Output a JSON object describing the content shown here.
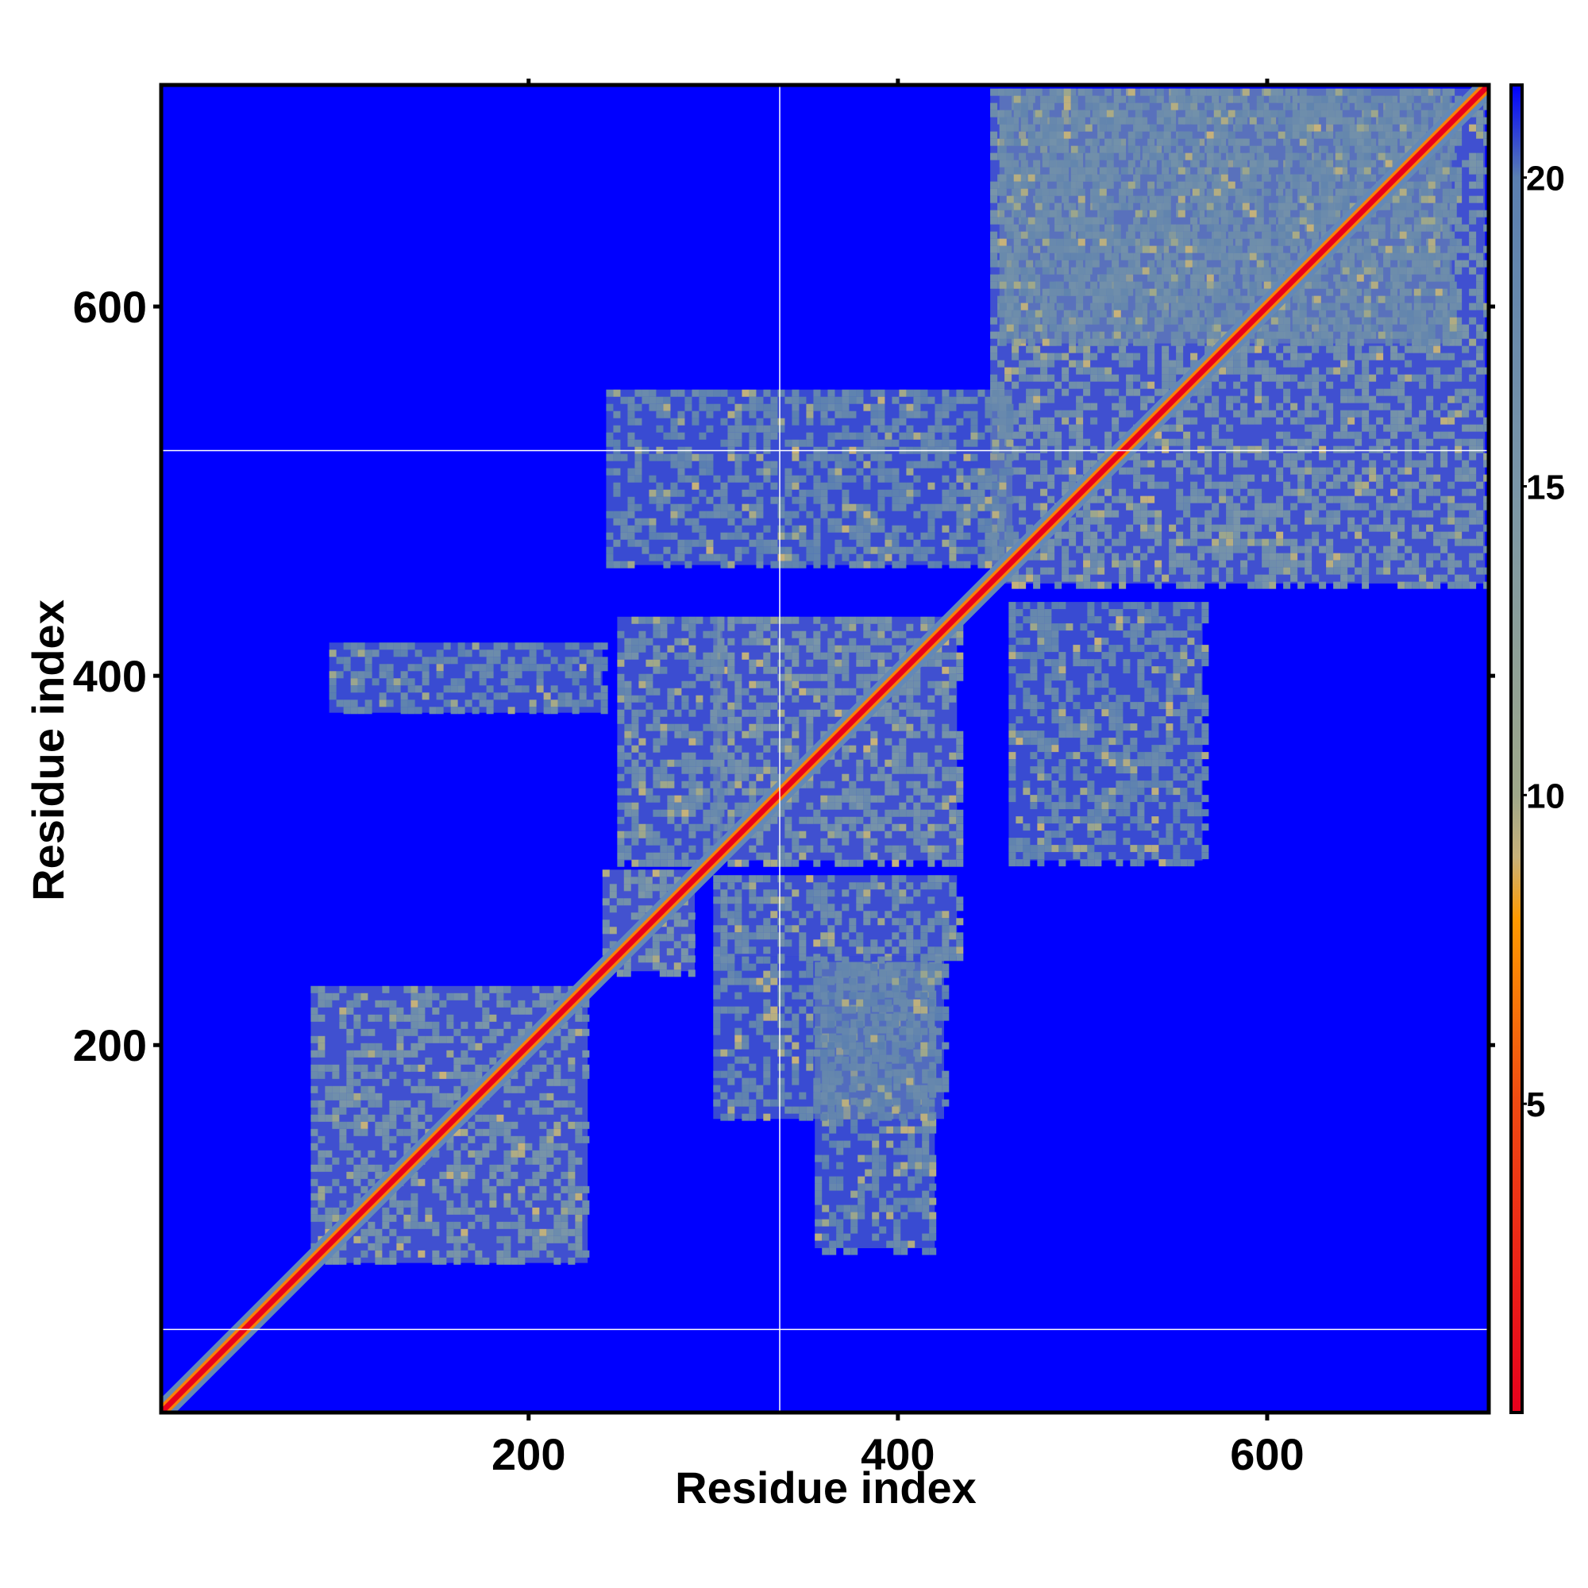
{
  "chart_data": {
    "type": "heatmap",
    "title": "",
    "xlabel": "Residue index",
    "ylabel": "Residue index",
    "xlim": [
      1,
      720
    ],
    "ylim": [
      1,
      720
    ],
    "x_ticks": [
      200,
      400,
      600
    ],
    "y_ticks": [
      200,
      400,
      600
    ],
    "colorbar": {
      "range": [
        0,
        21.5
      ],
      "ticks": [
        5,
        10,
        15,
        20
      ],
      "stops": [
        {
          "value": 0,
          "color": "#e8001c"
        },
        {
          "value": 5,
          "color": "#f04a12"
        },
        {
          "value": 8,
          "color": "#ff9a00"
        },
        {
          "value": 9,
          "color": "#c8b27a"
        },
        {
          "value": 10,
          "color": "#9fa88a"
        },
        {
          "value": 15,
          "color": "#7a96a8"
        },
        {
          "value": 20,
          "color": "#5a7fb0"
        },
        {
          "value": 21.5,
          "color": "#0000ff"
        }
      ]
    },
    "background_color": "#0000ff",
    "contact_color": "#6389b8",
    "diagonal_color": "#e8001c",
    "domain_boundary_lines": {
      "x": [
        336
      ],
      "y": [
        46,
        522
      ]
    },
    "diagonal": {
      "from": 1,
      "to": 720,
      "value": 1
    },
    "contact_regions": [
      {
        "x": [
          82,
          232
        ],
        "y": [
          82,
          232
        ],
        "value": 16
      },
      {
        "x": [
          240,
          290
        ],
        "y": [
          240,
          295
        ],
        "value": 15
      },
      {
        "x": [
          300,
          432
        ],
        "y": [
          300,
          432
        ],
        "value": 16
      },
      {
        "x": [
          450,
          718
        ],
        "y": [
          450,
          718
        ],
        "value": 16
      },
      {
        "x": [
          248,
          305
        ],
        "y": [
          300,
          432
        ],
        "value": 17
      },
      {
        "x": [
          300,
          432
        ],
        "y": [
          248,
          292
        ],
        "value": 17
      },
      {
        "x": [
          92,
          240
        ],
        "y": [
          380,
          418
        ],
        "value": 18
      },
      {
        "x": [
          355,
          420
        ],
        "y": [
          90,
          245
        ],
        "value": 18
      },
      {
        "x": [
          300,
          425
        ],
        "y": [
          160,
          248
        ],
        "value": 18
      },
      {
        "x": [
          460,
          565
        ],
        "y": [
          300,
          440
        ],
        "value": 18
      },
      {
        "x": [
          242,
          462
        ],
        "y": [
          460,
          555
        ],
        "value": 18
      },
      {
        "x": [
          455,
          700
        ],
        "y": [
          580,
          718
        ],
        "value": 17
      }
    ]
  }
}
